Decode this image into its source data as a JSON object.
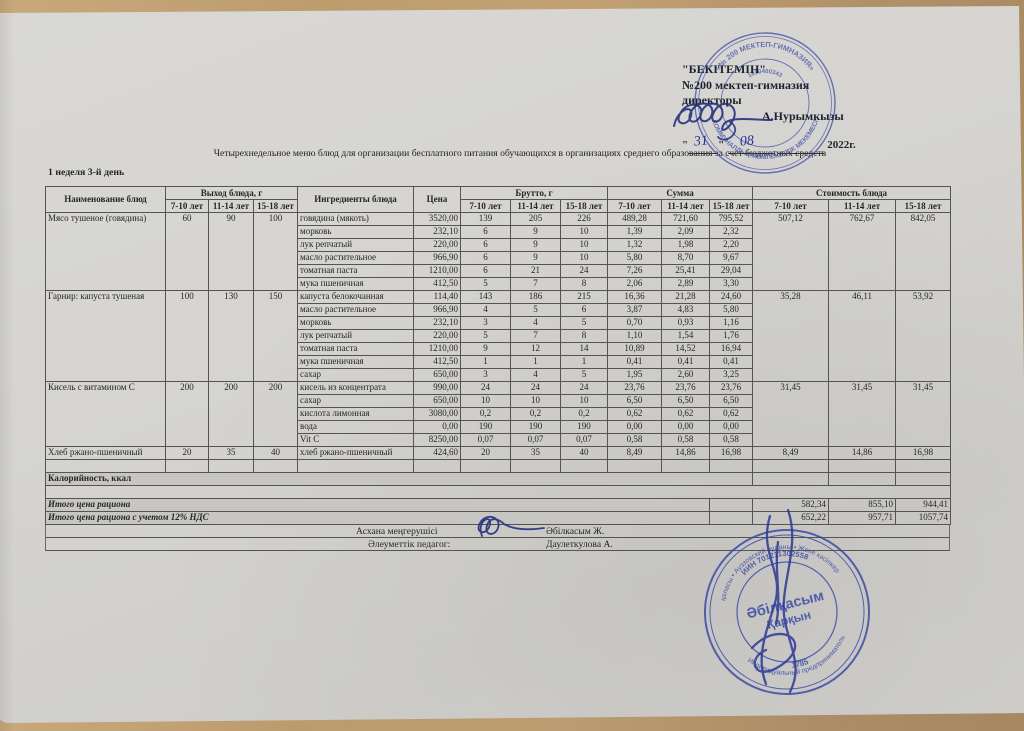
{
  "approval": {
    "approved": "\"БЕКІТЕМІН\"",
    "school": "№200 мектеп-гимназия",
    "role": "директоры",
    "director": "А.Нурымкызы",
    "day": "31",
    "month": "08",
    "year": "2022г.",
    "quote_open": "\"",
    "quote_close": "\""
  },
  "title": "Четырехнедельное меню блюд для организации бесплатного питания обучающихся в организациях среднего образования за счет бюджетных средств",
  "subtitle": "1 неделя 3-й день",
  "table": {
    "headers": {
      "name": "Наименование блюд",
      "output_group": "Выход блюда, г",
      "ingredients": "Ингредиенты блюда",
      "price": "Цена",
      "brutto_group": "Брутто, г",
      "sum_group": "Сумма",
      "cost_group": "Стоимость блюда",
      "age_groups": [
        "7-10 лет",
        "11-14 лет",
        "15-18 лет"
      ]
    },
    "dishes": [
      {
        "name": "Мясо тушеное (говядина)",
        "output": [
          "60",
          "90",
          "100"
        ],
        "cost": [
          "507,12",
          "762,67",
          "842,05"
        ],
        "rows": [
          {
            "ingredient": "говядина (мякоть)",
            "price": "3520,00",
            "brutto": [
              "139",
              "205",
              "226"
            ],
            "sum": [
              "489,28",
              "721,60",
              "795,52"
            ]
          },
          {
            "ingredient": "морковь",
            "price": "232,10",
            "brutto": [
              "6",
              "9",
              "10"
            ],
            "sum": [
              "1,39",
              "2,09",
              "2,32"
            ]
          },
          {
            "ingredient": "лук репчатый",
            "price": "220,00",
            "brutto": [
              "6",
              "9",
              "10"
            ],
            "sum": [
              "1,32",
              "1,98",
              "2,20"
            ]
          },
          {
            "ingredient": "масло растительное",
            "price": "966,90",
            "brutto": [
              "6",
              "9",
              "10"
            ],
            "sum": [
              "5,80",
              "8,70",
              "9,67"
            ]
          },
          {
            "ingredient": "томатная паста",
            "price": "1210,00",
            "brutto": [
              "6",
              "21",
              "24"
            ],
            "sum": [
              "7,26",
              "25,41",
              "29,04"
            ]
          },
          {
            "ingredient": "мука пшеничная",
            "price": "412,50",
            "brutto": [
              "5",
              "7",
              "8"
            ],
            "sum": [
              "2,06",
              "2,89",
              "3,30"
            ]
          }
        ]
      },
      {
        "name": "Гарнир: капуста тушеная",
        "output": [
          "100",
          "130",
          "150"
        ],
        "cost": [
          "35,28",
          "46,11",
          "53,92"
        ],
        "rows": [
          {
            "ingredient": "капуста белокочанная",
            "price": "114,40",
            "brutto": [
              "143",
              "186",
              "215"
            ],
            "sum": [
              "16,36",
              "21,28",
              "24,60"
            ]
          },
          {
            "ingredient": "масло растительное",
            "price": "966,90",
            "brutto": [
              "4",
              "5",
              "6"
            ],
            "sum": [
              "3,87",
              "4,83",
              "5,80"
            ]
          },
          {
            "ingredient": "морковь",
            "price": "232,10",
            "brutto": [
              "3",
              "4",
              "5"
            ],
            "sum": [
              "0,70",
              "0,93",
              "1,16"
            ]
          },
          {
            "ingredient": "лук репчатый",
            "price": "220,00",
            "brutto": [
              "5",
              "7",
              "8"
            ],
            "sum": [
              "1,10",
              "1,54",
              "1,76"
            ]
          },
          {
            "ingredient": "томатная паста",
            "price": "1210,00",
            "brutto": [
              "9",
              "12",
              "14"
            ],
            "sum": [
              "10,89",
              "14,52",
              "16,94"
            ]
          },
          {
            "ingredient": "мука пшеничная",
            "price": "412,50",
            "brutto": [
              "1",
              "1",
              "1"
            ],
            "sum": [
              "0,41",
              "0,41",
              "0,41"
            ]
          },
          {
            "ingredient": "сахар",
            "price": "650,00",
            "brutto": [
              "3",
              "4",
              "5"
            ],
            "sum": [
              "1,95",
              "2,60",
              "3,25"
            ]
          }
        ]
      },
      {
        "name": "Кисель с витамином С",
        "output": [
          "200",
          "200",
          "200"
        ],
        "cost": [
          "31,45",
          "31,45",
          "31,45"
        ],
        "rows": [
          {
            "ingredient": "кисель из концентрата",
            "price": "990,00",
            "brutto": [
              "24",
              "24",
              "24"
            ],
            "sum": [
              "23,76",
              "23,76",
              "23,76"
            ]
          },
          {
            "ingredient": "сахар",
            "price": "650,00",
            "brutto": [
              "10",
              "10",
              "10"
            ],
            "sum": [
              "6,50",
              "6,50",
              "6,50"
            ]
          },
          {
            "ingredient": "кислота лимонная",
            "price": "3080,00",
            "brutto": [
              "0,2",
              "0,2",
              "0,2"
            ],
            "sum": [
              "0,62",
              "0,62",
              "0,62"
            ]
          },
          {
            "ingredient": "вода",
            "price": "0,00",
            "brutto": [
              "190",
              "190",
              "190"
            ],
            "sum": [
              "0,00",
              "0,00",
              "0,00"
            ]
          },
          {
            "ingredient": "Vit C",
            "price": "8250,00",
            "brutto": [
              "0,07",
              "0,07",
              "0,07"
            ],
            "sum": [
              "0,58",
              "0,58",
              "0,58"
            ]
          }
        ]
      },
      {
        "name": "Хлеб ржано-пшеничный",
        "output": [
          "20",
          "35",
          "40"
        ],
        "cost": [
          "8,49",
          "14,86",
          "16,98"
        ],
        "rows": [
          {
            "ingredient": "хлеб ржано-пшеничный",
            "price": "424,60",
            "brutto": [
              "20",
              "35",
              "40"
            ],
            "sum": [
              "8,49",
              "14,86",
              "16,98"
            ]
          }
        ]
      }
    ],
    "calories_label": "Калорийность, ккал",
    "totals": [
      {
        "label": "Итого цена рациона",
        "values": [
          "582,34",
          "855,10",
          "944,41"
        ]
      },
      {
        "label": "Итого цена рациона с учетом 12% НДС",
        "values": [
          "652,22",
          "957,71",
          "1057,74"
        ]
      }
    ]
  },
  "signatures": [
    {
      "role": "Асхана меңгерушісі",
      "name": "Әбілкасым Ж."
    },
    {
      "role": "Әлеуметтік педагог:",
      "name": "Даулеткулова  А."
    }
  ],
  "stamps": {
    "top": {
      "arc_top": "«№ 200 МЕКТЕП-ГИМНАЗИЯ»",
      "arc_bottom": "КОММУНАЛДЫҚ МЕМЛЕКЕТТІК МЕКЕМЕСІ",
      "arc_inner": "1810400343",
      "color": "#4a57ab"
    },
    "bottom": {
      "name_line1": "Әбілқасым",
      "name_line2": "Қарқын",
      "arc_top_outer": "қаласы • Ауэзовский ауданы • Жеке кәсіпкер",
      "arc_bottom_outer": "Индивидуальный предприниматель",
      "arc_iin": "ИИН 701211302558",
      "arc_num": "1785",
      "color": "#3c4ca6"
    }
  }
}
